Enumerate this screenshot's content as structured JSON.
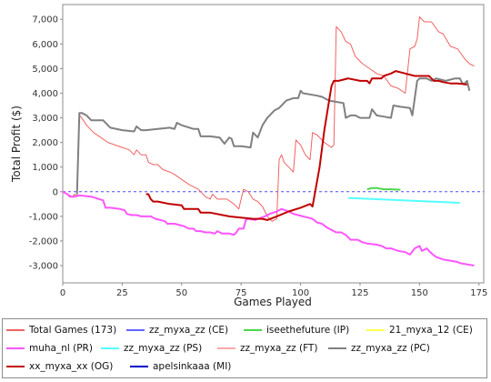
{
  "chart_data": {
    "type": "line",
    "title": "",
    "xlabel": "Games Played",
    "ylabel": "Total Profit ($)",
    "xlim": [
      0,
      177
    ],
    "ylim": [
      -3700,
      7600
    ],
    "x_ticks": [
      0,
      25,
      50,
      75,
      100,
      125,
      150,
      175
    ],
    "y_ticks": [
      -3000,
      -2000,
      -1000,
      0,
      1000,
      2000,
      3000,
      4000,
      5000,
      6000,
      7000
    ],
    "x_tick_labels": [
      "0",
      "25",
      "50",
      "75",
      "100",
      "125",
      "150",
      "175"
    ],
    "y_tick_labels": [
      "-3,000",
      "-2,000",
      "-1,000",
      "0",
      "1,000",
      "2,000",
      "3,000",
      "4,000",
      "5,000",
      "6,000",
      "7,000"
    ],
    "zero_line": true,
    "legend_position": "bottom",
    "series": [
      {
        "name": "Total Games (173)",
        "color": "#f26262",
        "width": 1,
        "points": [
          [
            0,
            0
          ],
          [
            2,
            -100
          ],
          [
            4,
            -200
          ],
          [
            5,
            -100
          ],
          [
            6,
            -200
          ],
          [
            7,
            3100
          ],
          [
            8,
            3000
          ],
          [
            10,
            2700
          ],
          [
            13,
            2400
          ],
          [
            16,
            2200
          ],
          [
            19,
            2000
          ],
          [
            22,
            1900
          ],
          [
            25,
            1800
          ],
          [
            28,
            1700
          ],
          [
            30,
            1500
          ],
          [
            31,
            1700
          ],
          [
            33,
            1500
          ],
          [
            35,
            1500
          ],
          [
            36,
            1200
          ],
          [
            38,
            1100
          ],
          [
            40,
            1100
          ],
          [
            42,
            900
          ],
          [
            45,
            800
          ],
          [
            47,
            700
          ],
          [
            50,
            500
          ],
          [
            53,
            300
          ],
          [
            57,
            100
          ],
          [
            60,
            -200
          ],
          [
            62,
            -300
          ],
          [
            63,
            -100
          ],
          [
            65,
            -300
          ],
          [
            67,
            -300
          ],
          [
            69,
            -300
          ],
          [
            72,
            -500
          ],
          [
            74,
            -700
          ],
          [
            76,
            100
          ],
          [
            78,
            0
          ],
          [
            80,
            -300
          ],
          [
            82,
            -400
          ],
          [
            84,
            -600
          ],
          [
            86,
            -1000
          ],
          [
            88,
            -1200
          ],
          [
            90,
            -1100
          ],
          [
            91,
            1300
          ],
          [
            92,
            1500
          ],
          [
            93,
            1200
          ],
          [
            95,
            1000
          ],
          [
            97,
            800
          ],
          [
            98,
            2100
          ],
          [
            100,
            1900
          ],
          [
            102,
            1500
          ],
          [
            104,
            1300
          ],
          [
            105,
            2400
          ],
          [
            107,
            2300
          ],
          [
            110,
            2000
          ],
          [
            113,
            1800
          ],
          [
            114,
            1900
          ],
          [
            115,
            6700
          ],
          [
            117,
            6500
          ],
          [
            119,
            6100
          ],
          [
            121,
            6000
          ],
          [
            123,
            5500
          ],
          [
            126,
            5200
          ],
          [
            129,
            5000
          ],
          [
            132,
            4800
          ],
          [
            135,
            4700
          ],
          [
            138,
            4300
          ],
          [
            141,
            4200
          ],
          [
            144,
            4000
          ],
          [
            146,
            5800
          ],
          [
            148,
            5900
          ],
          [
            149,
            6200
          ],
          [
            150,
            7100
          ],
          [
            152,
            6900
          ],
          [
            155,
            6900
          ],
          [
            158,
            6500
          ],
          [
            160,
            6400
          ],
          [
            163,
            5900
          ],
          [
            166,
            5800
          ],
          [
            169,
            5400
          ],
          [
            171,
            5200
          ],
          [
            173,
            5100
          ]
        ]
      },
      {
        "name": "zz_myxa_zz (CE)",
        "color": "#6464ff",
        "width": 2,
        "points": []
      },
      {
        "name": "iseethefuture (IP)",
        "color": "#4cd64c",
        "width": 2,
        "points": [
          [
            128,
            100
          ],
          [
            130,
            150
          ],
          [
            132,
            150
          ],
          [
            135,
            100
          ],
          [
            138,
            100
          ],
          [
            142,
            80
          ]
        ]
      },
      {
        "name": "21_myxa_12 (CE)",
        "color": "#ffff4c",
        "width": 2,
        "points": []
      },
      {
        "name": "muha_nl (PR)",
        "color": "#ff55ff",
        "width": 2,
        "points": [
          [
            0,
            0
          ],
          [
            2,
            -100
          ],
          [
            3,
            -200
          ],
          [
            5,
            -200
          ],
          [
            7,
            -150
          ],
          [
            12,
            -200
          ],
          [
            17,
            -350
          ],
          [
            18,
            -650
          ],
          [
            20,
            -650
          ],
          [
            24,
            -700
          ],
          [
            26,
            -750
          ],
          [
            27,
            -900
          ],
          [
            29,
            -950
          ],
          [
            31,
            -950
          ],
          [
            33,
            -1000
          ],
          [
            37,
            -1000
          ],
          [
            39,
            -1100
          ],
          [
            41,
            -1150
          ],
          [
            43,
            -1200
          ],
          [
            44,
            -1300
          ],
          [
            47,
            -1300
          ],
          [
            49,
            -1350
          ],
          [
            51,
            -1400
          ],
          [
            53,
            -1500
          ],
          [
            55,
            -1500
          ],
          [
            56,
            -1600
          ],
          [
            58,
            -1600
          ],
          [
            60,
            -1650
          ],
          [
            62,
            -1650
          ],
          [
            64,
            -1700
          ],
          [
            65,
            -1600
          ],
          [
            67,
            -1700
          ],
          [
            70,
            -1700
          ],
          [
            72,
            -1750
          ],
          [
            73,
            -1650
          ],
          [
            74,
            -1500
          ],
          [
            76,
            -1500
          ],
          [
            77,
            -1150
          ],
          [
            78,
            -1100
          ],
          [
            81,
            -1150
          ],
          [
            82,
            -1100
          ],
          [
            85,
            -1000
          ],
          [
            87,
            -900
          ],
          [
            90,
            -800
          ],
          [
            92,
            -700
          ],
          [
            95,
            -800
          ],
          [
            97,
            -900
          ],
          [
            99,
            -950
          ],
          [
            101,
            -1000
          ],
          [
            103,
            -1050
          ],
          [
            105,
            -1100
          ],
          [
            107,
            -1250
          ],
          [
            109,
            -1300
          ],
          [
            111,
            -1450
          ],
          [
            113,
            -1550
          ],
          [
            115,
            -1650
          ],
          [
            117,
            -1650
          ],
          [
            119,
            -1750
          ],
          [
            121,
            -1950
          ],
          [
            124,
            -1950
          ],
          [
            126,
            -2050
          ],
          [
            128,
            -2100
          ],
          [
            132,
            -2150
          ],
          [
            134,
            -2200
          ],
          [
            136,
            -2300
          ],
          [
            138,
            -2300
          ],
          [
            141,
            -2400
          ],
          [
            144,
            -2450
          ],
          [
            146,
            -2550
          ],
          [
            148,
            -2300
          ],
          [
            150,
            -2200
          ],
          [
            151,
            -2400
          ],
          [
            153,
            -2300
          ],
          [
            155,
            -2500
          ],
          [
            157,
            -2650
          ],
          [
            160,
            -2750
          ],
          [
            163,
            -2800
          ],
          [
            166,
            -2850
          ],
          [
            167,
            -2900
          ],
          [
            170,
            -2950
          ],
          [
            173,
            -3000
          ]
        ]
      },
      {
        "name": "zz_myxa_zz (PS)",
        "color": "#55ffff",
        "width": 2,
        "points": [
          [
            120,
            -250
          ],
          [
            167,
            -450
          ]
        ]
      },
      {
        "name": "zz_myxa_zz (FT)",
        "color": "#ffaaaa",
        "width": 2,
        "points": []
      },
      {
        "name": "zz_myxa_zz (PC)",
        "color": "#808080",
        "width": 2,
        "points": [
          [
            6,
            -100
          ],
          [
            7,
            3200
          ],
          [
            8,
            3200
          ],
          [
            10,
            3100
          ],
          [
            12,
            2900
          ],
          [
            17,
            2900
          ],
          [
            20,
            2600
          ],
          [
            25,
            2500
          ],
          [
            30,
            2450
          ],
          [
            31,
            2650
          ],
          [
            33,
            2500
          ],
          [
            35,
            2500
          ],
          [
            40,
            2550
          ],
          [
            45,
            2600
          ],
          [
            47,
            2550
          ],
          [
            48,
            2800
          ],
          [
            50,
            2700
          ],
          [
            55,
            2550
          ],
          [
            57,
            2550
          ],
          [
            58,
            2250
          ],
          [
            62,
            2250
          ],
          [
            66,
            2200
          ],
          [
            68,
            1950
          ],
          [
            70,
            2200
          ],
          [
            71,
            2150
          ],
          [
            72,
            1850
          ],
          [
            75,
            1850
          ],
          [
            79,
            1800
          ],
          [
            80,
            2400
          ],
          [
            82,
            2200
          ],
          [
            84,
            2700
          ],
          [
            86,
            3000
          ],
          [
            89,
            3300
          ],
          [
            91,
            3400
          ],
          [
            94,
            3700
          ],
          [
            97,
            3800
          ],
          [
            99,
            3800
          ],
          [
            100,
            4100
          ],
          [
            101,
            4000
          ],
          [
            104,
            3950
          ],
          [
            107,
            3900
          ],
          [
            109,
            3850
          ],
          [
            112,
            3700
          ],
          [
            115,
            3650
          ],
          [
            118,
            3600
          ],
          [
            119,
            3000
          ],
          [
            121,
            3100
          ],
          [
            123,
            3100
          ],
          [
            125,
            3000
          ],
          [
            127,
            3000
          ],
          [
            129,
            3000
          ],
          [
            130,
            3350
          ],
          [
            132,
            3100
          ],
          [
            135,
            3050
          ],
          [
            138,
            3000
          ],
          [
            139,
            3500
          ],
          [
            142,
            3450
          ],
          [
            146,
            3400
          ],
          [
            147,
            3100
          ],
          [
            149,
            4500
          ],
          [
            150,
            4600
          ],
          [
            153,
            4600
          ],
          [
            155,
            4500
          ],
          [
            157,
            4600
          ],
          [
            161,
            4500
          ],
          [
            165,
            4600
          ],
          [
            167,
            4600
          ],
          [
            168,
            4400
          ],
          [
            169,
            4400
          ],
          [
            170,
            4500
          ],
          [
            171,
            4100
          ]
        ]
      },
      {
        "name": "xx_myxa_xx (OG)",
        "color": "#c00000",
        "width": 2,
        "points": [
          [
            35,
            -100
          ],
          [
            36,
            -100
          ],
          [
            37,
            -300
          ],
          [
            38,
            -400
          ],
          [
            40,
            -400
          ],
          [
            45,
            -500
          ],
          [
            50,
            -550
          ],
          [
            51,
            -700
          ],
          [
            57,
            -700
          ],
          [
            58,
            -850
          ],
          [
            62,
            -850
          ],
          [
            70,
            -1000
          ],
          [
            80,
            -1100
          ],
          [
            84,
            -1100
          ],
          [
            86,
            -1150
          ],
          [
            90,
            -1000
          ],
          [
            95,
            -800
          ],
          [
            100,
            -650
          ],
          [
            104,
            -500
          ],
          [
            105,
            -600
          ],
          [
            108,
            1000
          ],
          [
            110,
            2500
          ],
          [
            113,
            4300
          ],
          [
            114,
            4500
          ],
          [
            116,
            4500
          ],
          [
            120,
            4600
          ],
          [
            125,
            4500
          ],
          [
            128,
            4500
          ],
          [
            129,
            4400
          ],
          [
            130,
            4600
          ],
          [
            134,
            4600
          ],
          [
            135,
            4700
          ],
          [
            138,
            4800
          ],
          [
            140,
            4900
          ],
          [
            144,
            4800
          ],
          [
            148,
            4700
          ],
          [
            154,
            4700
          ],
          [
            156,
            4500
          ],
          [
            158,
            4500
          ],
          [
            160,
            4450
          ],
          [
            163,
            4400
          ],
          [
            166,
            4400
          ],
          [
            170,
            4350
          ]
        ]
      },
      {
        "name": "apelsinkaaa (MI)",
        "color": "#0000cc",
        "width": 2,
        "points": []
      }
    ]
  },
  "legend": {
    "items": [
      {
        "label": "Total Games (173)",
        "color": "#f26262"
      },
      {
        "label": "zz_myxa_zz (CE)",
        "color": "#6464ff"
      },
      {
        "label": "iseethefuture (IP)",
        "color": "#4cd64c"
      },
      {
        "label": "21_myxa_12 (CE)",
        "color": "#ffff4c"
      },
      {
        "label": "muha_nl (PR)",
        "color": "#ff55ff"
      },
      {
        "label": "zz_myxa_zz (PS)",
        "color": "#55ffff"
      },
      {
        "label": "zz_myxa_zz (FT)",
        "color": "#ffaaaa"
      },
      {
        "label": "zz_myxa_zz (PC)",
        "color": "#808080"
      },
      {
        "label": "xx_myxa_xx (OG)",
        "color": "#c00000"
      },
      {
        "label": "apelsinkaaa (MI)",
        "color": "#0000cc"
      }
    ]
  }
}
